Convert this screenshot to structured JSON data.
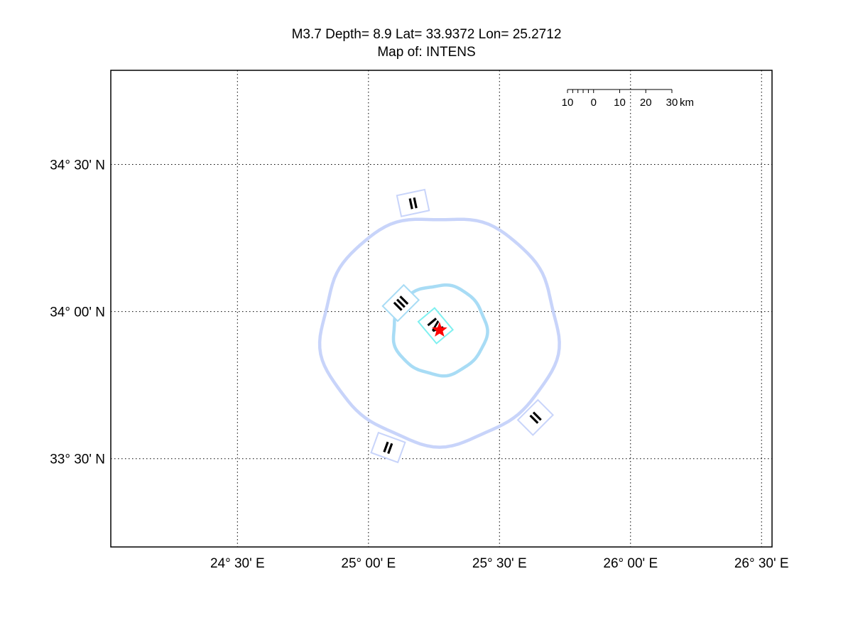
{
  "title": {
    "line1": "M3.7 Depth= 8.9 Lat= 33.9372 Lon= 25.2712",
    "line2": "Map of: INTENS"
  },
  "chart_data": {
    "type": "map",
    "xlim": [
      24.0167,
      26.54
    ],
    "ylim": [
      33.2,
      34.82
    ],
    "grid": true,
    "lon_ticks": [
      {
        "value": 24.5,
        "label": "24° 30' E"
      },
      {
        "value": 25.0,
        "label": "25° 00' E"
      },
      {
        "value": 25.5,
        "label": "25° 30' E"
      },
      {
        "value": 26.0,
        "label": "26° 00' E"
      },
      {
        "value": 26.5,
        "label": "26° 30' E"
      }
    ],
    "lat_ticks": [
      {
        "value": 34.5,
        "label": "34° 30' N"
      },
      {
        "value": 34.0,
        "label": "34° 00' N"
      },
      {
        "value": 33.5,
        "label": "33° 30' N"
      }
    ],
    "epicenter": {
      "lat": 33.9372,
      "lon": 25.2712,
      "color": "#ff0000",
      "marker": "star"
    },
    "contours": [
      {
        "intensity": "II",
        "radius_km": 43,
        "color": "#c8d4fa"
      },
      {
        "intensity": "III",
        "radius_km": 17,
        "color": "#a8dcf5"
      },
      {
        "intensity": "IV",
        "radius_km": 1.5,
        "color": "#7ff0f0"
      }
    ],
    "intensity_labels": [
      {
        "text": "II",
        "lat": 34.369,
        "lon": 25.17,
        "angle": -12,
        "color": "#c8d4fa"
      },
      {
        "text": "III",
        "lat": 34.029,
        "lon": 25.123,
        "angle": -45,
        "color": "#a8dcf5"
      },
      {
        "text": "IV",
        "lat": 33.952,
        "lon": 25.256,
        "angle": 50,
        "color": "#7ff0f0"
      },
      {
        "text": "II",
        "lat": 33.64,
        "lon": 25.637,
        "angle": -45,
        "color": "#c8d4fa"
      },
      {
        "text": "II",
        "lat": 33.538,
        "lon": 25.075,
        "angle": 20,
        "color": "#c8d4fa"
      }
    ],
    "scale_bar": {
      "labels": [
        "10",
        "0",
        "10",
        "20",
        "30"
      ],
      "unit": "km"
    }
  }
}
